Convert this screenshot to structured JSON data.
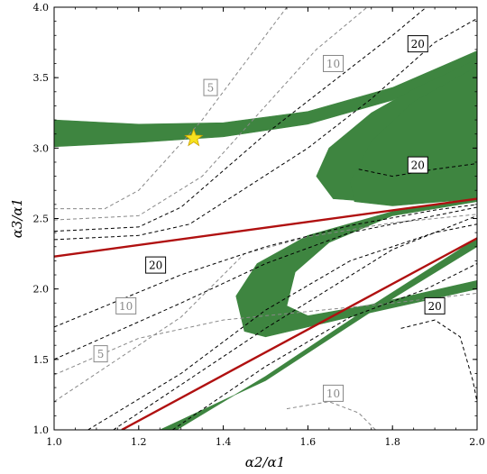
{
  "chart_data": {
    "type": "line",
    "xlabel": "α2/α1",
    "ylabel": "α3/α1",
    "xlim": [
      1.0,
      2.0
    ],
    "ylim": [
      1.0,
      4.0
    ],
    "grid": false,
    "x_ticks": [
      "1.0",
      "1.2",
      "1.4",
      "1.6",
      "1.8",
      "2.0"
    ],
    "y_ticks": [
      "1.0",
      "1.5",
      "2.0",
      "2.5",
      "3.0",
      "3.5",
      "4.0"
    ],
    "colors": {
      "green": "#3e8540",
      "red": "#b01010",
      "dark_dash": "#000000",
      "gray_dash": "#888888",
      "star": "#f6e21f"
    },
    "red_lines": [
      [
        [
          1.0,
          2.23
        ],
        [
          2.0,
          2.64
        ]
      ],
      [
        [
          1.16,
          1.0
        ],
        [
          2.0,
          2.36
        ]
      ]
    ],
    "green_bands": [
      {
        "upper": [
          [
            1.0,
            3.2
          ],
          [
            1.2,
            3.17
          ],
          [
            1.4,
            3.18
          ],
          [
            1.6,
            3.26
          ],
          [
            1.8,
            3.43
          ],
          [
            2.0,
            3.69
          ]
        ],
        "lower": [
          [
            1.0,
            3.01
          ],
          [
            1.2,
            3.04
          ],
          [
            1.4,
            3.08
          ],
          [
            1.6,
            3.17
          ],
          [
            1.8,
            3.34
          ],
          [
            2.0,
            3.62
          ]
        ]
      },
      {
        "outer": [
          [
            2.0,
            3.63
          ],
          [
            1.85,
            3.42
          ],
          [
            1.75,
            3.25
          ],
          [
            1.65,
            3.0
          ],
          [
            1.62,
            2.8
          ],
          [
            1.66,
            2.64
          ],
          [
            1.8,
            2.61
          ],
          [
            2.0,
            2.64
          ]
        ],
        "inner": [
          [
            2.0,
            2.64
          ],
          [
            1.8,
            2.59
          ],
          [
            1.71,
            2.62
          ],
          [
            1.7,
            2.76
          ],
          [
            1.75,
            3.05
          ],
          [
            1.85,
            3.33
          ],
          [
            2.0,
            3.58
          ]
        ]
      },
      {
        "outer": [
          [
            2.0,
            2.64
          ],
          [
            1.8,
            2.55
          ],
          [
            1.6,
            2.38
          ],
          [
            1.48,
            2.18
          ],
          [
            1.43,
            1.95
          ],
          [
            1.45,
            1.7
          ],
          [
            1.5,
            1.66
          ],
          [
            1.7,
            1.8
          ],
          [
            2.0,
            2.0
          ]
        ],
        "inner": [
          [
            2.0,
            2.62
          ],
          [
            1.8,
            2.52
          ],
          [
            1.65,
            2.33
          ],
          [
            1.57,
            2.12
          ],
          [
            1.55,
            1.88
          ],
          [
            1.6,
            1.81
          ],
          [
            1.75,
            1.89
          ],
          [
            2.0,
            2.06
          ]
        ]
      },
      {
        "upper": [
          [
            1.29,
            1.0
          ],
          [
            1.5,
            1.38
          ],
          [
            1.75,
            1.88
          ],
          [
            2.0,
            2.36
          ]
        ],
        "lower": [
          [
            1.25,
            1.0
          ],
          [
            1.5,
            1.35
          ],
          [
            1.75,
            1.84
          ],
          [
            2.0,
            2.3
          ]
        ]
      }
    ],
    "dark_dashed": [
      [
        [
          1.0,
          2.41
        ],
        [
          1.2,
          2.44
        ],
        [
          1.3,
          2.58
        ],
        [
          1.5,
          3.1
        ],
        [
          1.65,
          3.45
        ],
        [
          1.8,
          3.8
        ],
        [
          1.88,
          4.0
        ]
      ],
      [
        [
          1.0,
          2.35
        ],
        [
          1.2,
          2.38
        ],
        [
          1.32,
          2.46
        ],
        [
          1.6,
          3.0
        ],
        [
          1.75,
          3.35
        ],
        [
          1.9,
          3.75
        ],
        [
          2.0,
          3.92
        ]
      ],
      [
        [
          1.0,
          1.73
        ],
        [
          1.3,
          2.1
        ],
        [
          1.5,
          2.3
        ],
        [
          1.7,
          2.45
        ],
        [
          1.9,
          2.56
        ],
        [
          2.0,
          2.6
        ]
      ],
      [
        [
          1.0,
          1.5
        ],
        [
          1.3,
          1.9
        ],
        [
          1.5,
          2.18
        ],
        [
          1.7,
          2.4
        ],
        [
          2.0,
          2.58
        ]
      ],
      [
        [
          1.08,
          1.0
        ],
        [
          1.3,
          1.4
        ],
        [
          1.5,
          1.85
        ],
        [
          1.7,
          2.2
        ],
        [
          1.9,
          2.4
        ],
        [
          2.0,
          2.46
        ]
      ],
      [
        [
          1.14,
          1.0
        ],
        [
          1.5,
          1.72
        ],
        [
          1.8,
          2.28
        ],
        [
          2.0,
          2.52
        ]
      ],
      [
        [
          1.28,
          1.0
        ],
        [
          1.5,
          1.45
        ],
        [
          1.7,
          1.8
        ],
        [
          1.88,
          2.0
        ],
        [
          2.0,
          2.18
        ]
      ],
      [
        [
          1.82,
          1.72
        ],
        [
          1.9,
          1.78
        ],
        [
          1.96,
          1.66
        ],
        [
          1.99,
          1.35
        ],
        [
          2.0,
          1.2
        ]
      ],
      [
        [
          1.72,
          2.85
        ],
        [
          1.8,
          2.8
        ],
        [
          1.9,
          2.85
        ],
        [
          2.0,
          2.89
        ]
      ]
    ],
    "gray_dashed": [
      [
        [
          1.0,
          2.57
        ],
        [
          1.12,
          2.57
        ],
        [
          1.2,
          2.7
        ],
        [
          1.35,
          3.2
        ],
        [
          1.45,
          3.6
        ],
        [
          1.55,
          4.0
        ]
      ],
      [
        [
          1.0,
          2.49
        ],
        [
          1.2,
          2.52
        ],
        [
          1.35,
          2.8
        ],
        [
          1.5,
          3.3
        ],
        [
          1.62,
          3.7
        ],
        [
          1.74,
          4.0
        ]
      ],
      [
        [
          1.0,
          1.39
        ],
        [
          1.2,
          1.65
        ],
        [
          1.4,
          1.78
        ],
        [
          1.6,
          1.84
        ],
        [
          1.8,
          1.9
        ],
        [
          2.0,
          1.97
        ]
      ],
      [
        [
          1.0,
          1.2
        ],
        [
          1.3,
          1.8
        ],
        [
          1.45,
          2.25
        ],
        [
          1.6,
          2.37
        ],
        [
          1.8,
          2.47
        ],
        [
          2.0,
          2.53
        ]
      ],
      [
        [
          1.55,
          1.15
        ],
        [
          1.65,
          1.2
        ],
        [
          1.72,
          1.12
        ],
        [
          1.76,
          1.0
        ]
      ]
    ],
    "contour_labels": [
      {
        "text": "5",
        "x": 1.37,
        "y": 3.43,
        "tone": "gray"
      },
      {
        "text": "10",
        "x": 1.66,
        "y": 3.6,
        "tone": "gray"
      },
      {
        "text": "20",
        "x": 1.86,
        "y": 3.74,
        "tone": "dark"
      },
      {
        "text": "20",
        "x": 1.86,
        "y": 2.88,
        "tone": "dark"
      },
      {
        "text": "20",
        "x": 1.24,
        "y": 2.17,
        "tone": "dark"
      },
      {
        "text": "10",
        "x": 1.17,
        "y": 1.88,
        "tone": "gray"
      },
      {
        "text": "5",
        "x": 1.11,
        "y": 1.54,
        "tone": "gray"
      },
      {
        "text": "20",
        "x": 1.9,
        "y": 1.88,
        "tone": "dark"
      },
      {
        "text": "10",
        "x": 1.66,
        "y": 1.26,
        "tone": "gray"
      }
    ],
    "star": {
      "x": 1.33,
      "y": 3.07
    }
  }
}
